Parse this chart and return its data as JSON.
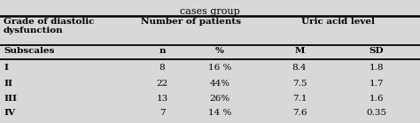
{
  "title": "cases group",
  "col1_header": "Grade of diastolic\ndysfunction",
  "col2_header": "Number of patients",
  "col3_header": "Uric acid level",
  "sub_headers": [
    "Subscales",
    "n",
    "%",
    "M",
    "SD"
  ],
  "rows": [
    [
      "I",
      "8",
      "16 %",
      "8.4",
      "1.8"
    ],
    [
      "II",
      "22",
      "44%",
      "7.5",
      "1.7"
    ],
    [
      "III",
      "13",
      "26%",
      "7.1",
      "1.6"
    ],
    [
      "IV",
      "7",
      "14 %",
      "7.6",
      "0.35"
    ]
  ],
  "background_color": "#d8d8d8",
  "font_size": 7.5,
  "title_font_size": 8.0
}
